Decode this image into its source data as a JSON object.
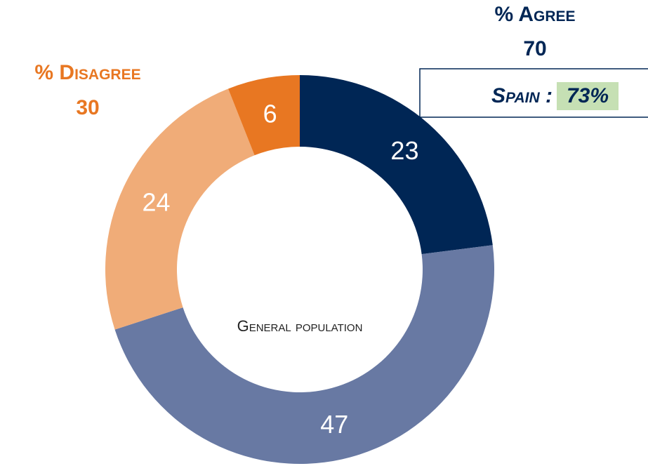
{
  "chart_data": {
    "type": "donut",
    "categories": [
      null,
      null,
      null,
      null
    ],
    "values": [
      23,
      47,
      24,
      6
    ],
    "colors": [
      "#002655",
      "#6879a3",
      "#f0ac78",
      "#e87722"
    ],
    "center_label": "General population",
    "annotations": [
      {
        "label": "% Agree",
        "value": 70,
        "color": "#002655"
      },
      {
        "label": "% Disagree",
        "value": 30,
        "color": "#e87722"
      }
    ],
    "callout": {
      "label": "Spain :",
      "value": "73%"
    }
  }
}
